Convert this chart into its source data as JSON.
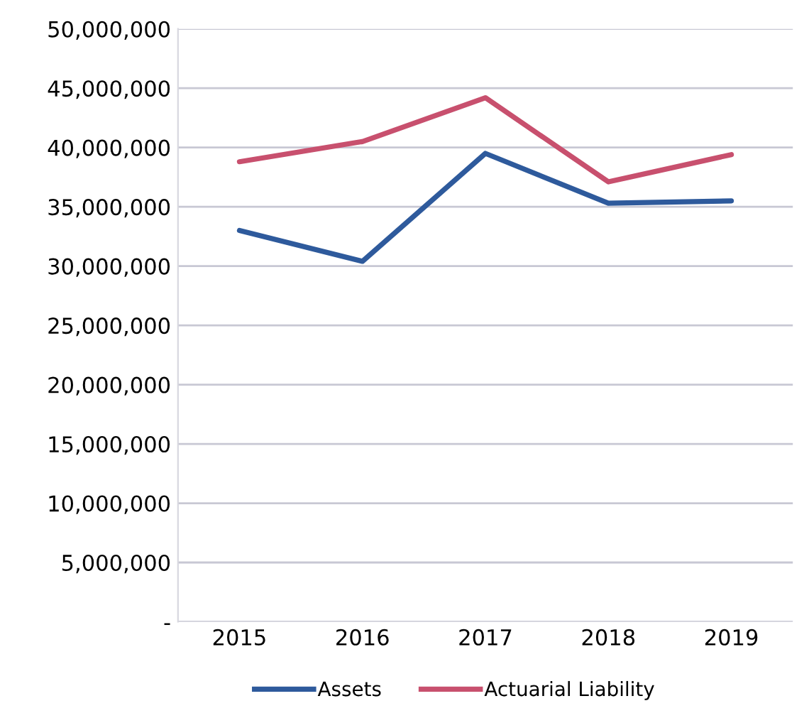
{
  "chart_data": {
    "type": "line",
    "categories": [
      "2015",
      "2016",
      "2017",
      "2018",
      "2019"
    ],
    "series": [
      {
        "name": "Assets",
        "color": "#2e5a9c",
        "values": [
          33000000,
          30400000,
          39500000,
          35300000,
          35500000
        ]
      },
      {
        "name": "Actuarial Liability",
        "color": "#c8506e",
        "values": [
          38800000,
          40500000,
          44200000,
          37100000,
          39400000
        ]
      }
    ],
    "ylim": [
      0,
      50000000
    ],
    "yticks": [
      {
        "value": 0,
        "label": "-"
      },
      {
        "value": 5000000,
        "label": "5,000,000"
      },
      {
        "value": 10000000,
        "label": "10,000,000"
      },
      {
        "value": 15000000,
        "label": "15,000,000"
      },
      {
        "value": 20000000,
        "label": "20,000,000"
      },
      {
        "value": 25000000,
        "label": "25,000,000"
      },
      {
        "value": 30000000,
        "label": "30,000,000"
      },
      {
        "value": 35000000,
        "label": "35,000,000"
      },
      {
        "value": 40000000,
        "label": "40,000,000"
      },
      {
        "value": 45000000,
        "label": "45,000,000"
      },
      {
        "value": 50000000,
        "label": "50,000,000"
      }
    ],
    "grid": "y",
    "legend": "bottom",
    "marker": "none",
    "line_style": "solid"
  }
}
